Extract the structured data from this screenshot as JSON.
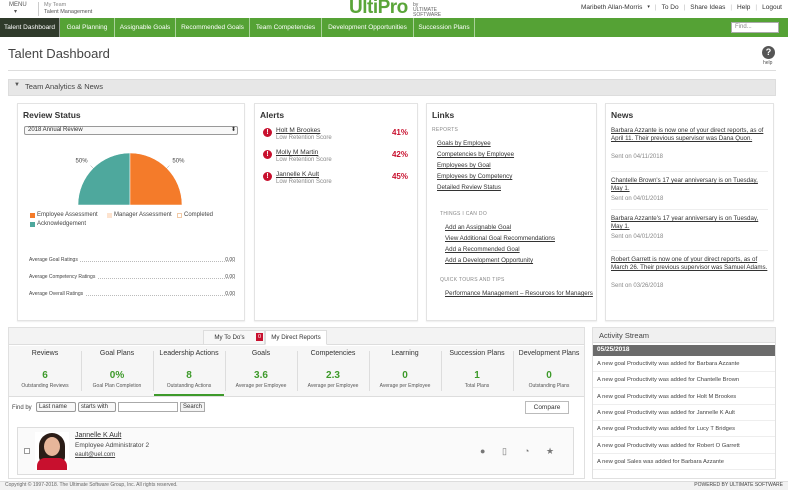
{
  "header": {
    "menu": "MENU",
    "breadcrumb": [
      "My Team",
      "Talent Management"
    ],
    "logo": "UltiPro",
    "logo_by": "by",
    "logo_company": "ULTIMATE SOFTWARE",
    "user": "Maribeth Allan-Morris",
    "links": [
      "To Do",
      "Share Ideas",
      "Help",
      "Logout"
    ]
  },
  "nav": {
    "tabs": [
      "Talent Dashboard",
      "Goal Planning",
      "Assignable Goals",
      "Recommended Goals",
      "Team Competencies",
      "Development Opportunities",
      "Succession Plans"
    ],
    "active": 0,
    "search_placeholder": "Find..."
  },
  "page": {
    "title": "Talent Dashboard",
    "help": "help",
    "section": "Team Analytics & News"
  },
  "review_status": {
    "title": "Review Status",
    "select": "2018 Annual Review",
    "pie": {
      "values": [
        50,
        50
      ],
      "value_labels": [
        "50%",
        "50%"
      ],
      "colors": [
        "#4ea89d",
        "#f47b2a"
      ]
    },
    "legend": [
      {
        "label": "Employee Assessment",
        "color": "#f47b2a"
      },
      {
        "label": "Manager Assessment",
        "color": "#fde3cf"
      },
      {
        "label": "Completed",
        "color": "#ffffff"
      },
      {
        "label": "Acknowledgement",
        "color": "#4ea89d"
      }
    ],
    "ratings": [
      {
        "label": "Average Goal Ratings",
        "value": "0.00"
      },
      {
        "label": "Average Competency Ratings",
        "value": "0.00"
      },
      {
        "label": "Average Overall Ratings",
        "value": "0.00"
      }
    ]
  },
  "alerts": {
    "title": "Alerts",
    "items": [
      {
        "name": "Holt M Brookes",
        "detail": "Low Retention Score",
        "value": "41%"
      },
      {
        "name": "Molly M Martin",
        "detail": "Low Retention Score",
        "value": "42%"
      },
      {
        "name": "Jannelle K Ault",
        "detail": "Low Retention Score",
        "value": "45%"
      }
    ]
  },
  "links": {
    "title": "Links",
    "groups": [
      {
        "heading": "REPORTS",
        "items": [
          "Goals by Employee",
          "Competencies by Employee",
          "Employees by Goal",
          "Employees by Competency",
          "Detailed Review Status"
        ]
      },
      {
        "heading": "THINGS I CAN DO",
        "items": [
          "Add an Assignable Goal",
          "View Additional Goal Recommendations",
          "Add a Recommended Goal",
          "Add a Development Opportunity"
        ]
      },
      {
        "heading": "QUICK TOURS AND TIPS",
        "items": [
          "Performance Management – Resources for Managers"
        ]
      }
    ]
  },
  "news": {
    "title": "News",
    "items": [
      {
        "text": "Barbara Azzante is now one of your direct reports, as of April 11. Their previous supervisor was Dana Quon.",
        "date": "Sent on 04/11/2018"
      },
      {
        "text": "Chantelle Brown's 17 year anniversary is on Tuesday, May 1.",
        "date": "Sent on 04/01/2018"
      },
      {
        "text": "Barbara Azzante's 17 year anniversary is on Tuesday, May 1.",
        "date": "Sent on 04/01/2018"
      },
      {
        "text": "Robert Garrett is now one of your direct reports, as of March 26. Their previous supervisor was Samuel Adams.",
        "date": "Sent on 03/26/2018"
      }
    ]
  },
  "reports": {
    "tabs": [
      "My To Do's",
      "My Direct Reports"
    ],
    "badge": "0",
    "active_tab": 1,
    "stats": [
      {
        "title": "Reviews",
        "value": "6",
        "label": "Outstanding Reviews"
      },
      {
        "title": "Goal Plans",
        "value": "0%",
        "label": "Goal Plan Completion"
      },
      {
        "title": "Leadership Actions",
        "value": "8",
        "label": "Outstanding Actions"
      },
      {
        "title": "Goals",
        "value": "3.6",
        "label": "Average per Employee"
      },
      {
        "title": "Competencies",
        "value": "2.3",
        "label": "Average per Employee"
      },
      {
        "title": "Learning",
        "value": "0",
        "label": "Average per Employee"
      },
      {
        "title": "Succession Plans",
        "value": "1",
        "label": "Total Plans"
      },
      {
        "title": "Development Plans",
        "value": "0",
        "label": "Outstanding Plans"
      }
    ],
    "active_stat": 2,
    "find": {
      "label": "Find by",
      "field": "Last name",
      "operator": "starts with",
      "search": "Search",
      "compare": "Compare"
    },
    "employee": {
      "name": "Jannelle K Ault",
      "title": "Employee Administrator 2",
      "email": "eault@uel.com"
    }
  },
  "activity": {
    "title": "Activity Stream",
    "date": "05/25/2018",
    "items": [
      "A new goal Productivity was added for Barbara Azzante",
      "A new goal Productivity was added for Chantelle Brown",
      "A new goal Productivity was added for Holt M Brookes",
      "A new goal Productivity was added for Jannelle K Ault",
      "A new goal Productivity was added for Lucy T Bridges",
      "A new goal Productivity was added for Robert O Garrett",
      "A new goal Sales was added for Barbara Azzante"
    ]
  },
  "footer": {
    "copyright": "Copyright © 1997-2018. The Ultimate Software Group, Inc. All rights reserved.",
    "powered": "POWERED BY ULTIMATE SOFTWARE"
  }
}
